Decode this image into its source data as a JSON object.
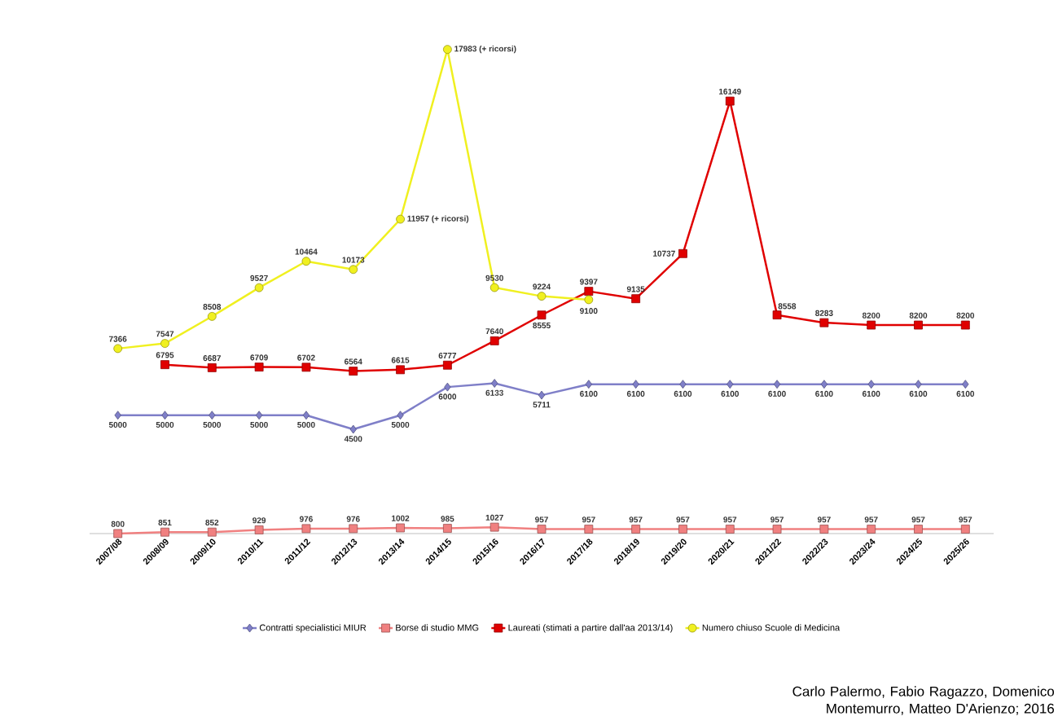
{
  "chart_data": {
    "type": "line",
    "categories": [
      "2007/08",
      "2008/09",
      "2009/10",
      "2010/11",
      "2011/12",
      "2012/13",
      "2013/14",
      "2014/15",
      "2015/16",
      "2016/17",
      "2017/18",
      "2018/19",
      "2019/20",
      "2020/21",
      "2021/22",
      "2022/23",
      "2023/24",
      "2024/25",
      "2025/26"
    ],
    "series": [
      {
        "name": "Contratti specialistici MIUR",
        "color": "#7f7fc8",
        "marker": "diamond",
        "values": [
          5000,
          5000,
          5000,
          5000,
          5000,
          4500,
          5000,
          6000,
          6133,
          5711,
          6100,
          6100,
          6100,
          6100,
          6100,
          6100,
          6100,
          6100,
          6100
        ]
      },
      {
        "name": "Borse di studio MMG",
        "color": "#f08080",
        "marker": "square",
        "values": [
          800,
          851,
          852,
          929,
          976,
          976,
          1002,
          985,
          1027,
          957,
          957,
          957,
          957,
          957,
          957,
          957,
          957,
          957,
          957
        ]
      },
      {
        "name": "Laureati (stimati a partire dall'aa 2013/14)",
        "color": "#e00000",
        "marker": "square",
        "values": [
          null,
          6795,
          6687,
          6709,
          6702,
          6564,
          6615,
          6777,
          7640,
          8555,
          9397,
          9135,
          10737,
          16149,
          8558,
          8283,
          8200,
          8200,
          8200
        ]
      },
      {
        "name": "Numero chiuso Scuole di Medicina",
        "color": "#f0f020",
        "marker": "circle",
        "values": [
          7366,
          7547,
          8508,
          9527,
          10464,
          10173,
          11957,
          17983,
          9530,
          9224,
          9100,
          null,
          null,
          null,
          null,
          null,
          null,
          null,
          null
        ],
        "value_labels": [
          "7366",
          "7547",
          "8508",
          "9527",
          "10464",
          "10173",
          "11957 (+ ricorsi)",
          "17983 (+ ricorsi)",
          "9530",
          "9224",
          "9100",
          null,
          null,
          null,
          null,
          null,
          null,
          null,
          null
        ]
      }
    ],
    "data_labels": true,
    "legend": "bottom",
    "line_style": "solid",
    "annotations": [
      "Carlo Palermo, Fabio Ragazzo, Domenico Montemurro, Matteo D'Arienzo; 2016"
    ]
  }
}
